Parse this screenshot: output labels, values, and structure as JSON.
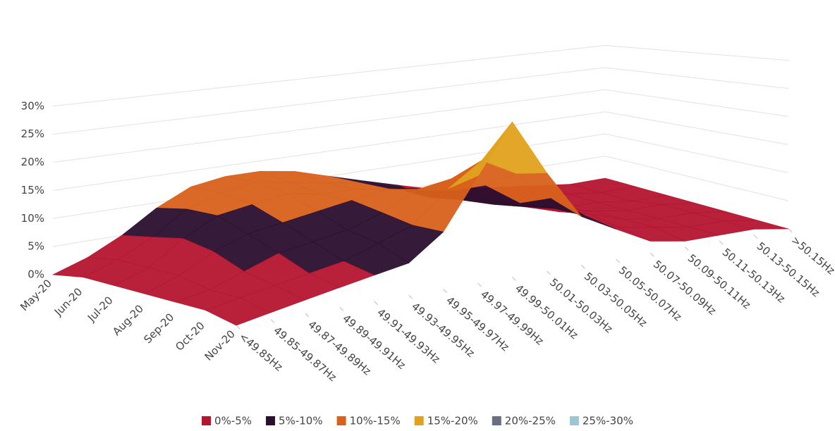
{
  "chart_data": {
    "type": "surface",
    "categories": [
      "<49.85Hz",
      "49.85-49.87Hz",
      "49.87-49.89Hz",
      "49.89-49.91Hz",
      "49.91-49.93Hz",
      "49.93-49.95Hz",
      "49.95-49.97Hz",
      "49.97-49.99Hz",
      "49.99-50.01Hz",
      "50.01-50.03Hz",
      "50.03-50.05Hz",
      "50.05-50.07Hz",
      "50.07-50.09Hz",
      "50.09-50.11Hz",
      "50.11-50.13Hz",
      "50.13-50.15Hz",
      ">50.15Hz"
    ],
    "series": [
      {
        "name": "May-20",
        "values": [
          0,
          2,
          5,
          9,
          12,
          13,
          13,
          12,
          10,
          8,
          6,
          4,
          3,
          2,
          1,
          0,
          0
        ]
      },
      {
        "name": "Jun-20",
        "values": [
          1,
          3,
          6,
          10,
          12,
          13,
          12,
          11,
          10,
          8,
          5,
          4,
          2,
          2,
          1,
          0,
          0
        ]
      },
      {
        "name": "Jul-20",
        "values": [
          1,
          3,
          7,
          10,
          11,
          12,
          11,
          11,
          10,
          9,
          6,
          4,
          3,
          1,
          1,
          0,
          0
        ]
      },
      {
        "name": "Aug-20",
        "values": [
          1,
          3,
          6,
          8,
          9,
          10,
          11,
          12,
          11,
          10,
          7,
          5,
          3,
          2,
          1,
          1,
          0
        ]
      },
      {
        "name": "Sep-20",
        "values": [
          1,
          2,
          4,
          6,
          7,
          8,
          10,
          13,
          14,
          12,
          8,
          6,
          4,
          2,
          1,
          1,
          0
        ]
      },
      {
        "name": "Oct-20",
        "values": [
          1,
          2,
          3,
          4,
          5,
          7,
          9,
          14,
          18,
          15,
          10,
          6,
          3,
          2,
          1,
          1,
          0
        ]
      },
      {
        "name": "Nov-20",
        "values": [
          0,
          1,
          2,
          3,
          4,
          5,
          9,
          17,
          25,
          16,
          8,
          5,
          2,
          1,
          1,
          1,
          0
        ]
      }
    ],
    "bands": [
      {
        "name": "0%-5%",
        "color": "#b5142f",
        "from": 0,
        "to": 5
      },
      {
        "name": "5%-10%",
        "color": "#2a0f2e",
        "from": 5,
        "to": 10
      },
      {
        "name": "10%-15%",
        "color": "#d8611c",
        "from": 10,
        "to": 15
      },
      {
        "name": "15%-20%",
        "color": "#e0a21e",
        "from": 15,
        "to": 20
      },
      {
        "name": "20%-25%",
        "color": "#6b6e80",
        "from": 20,
        "to": 25
      },
      {
        "name": "25%-30%",
        "color": "#9ec6d0",
        "from": 25,
        "to": 30
      }
    ],
    "ylim": [
      0,
      30
    ],
    "yticks": [
      {
        "value": 0,
        "label": "0%"
      },
      {
        "value": 5,
        "label": "5%"
      },
      {
        "value": 10,
        "label": "10%"
      },
      {
        "value": 15,
        "label": "15%"
      },
      {
        "value": 20,
        "label": "20%"
      },
      {
        "value": 25,
        "label": "25%"
      },
      {
        "value": 30,
        "label": "30%"
      }
    ],
    "grid": true,
    "legend": "bottom"
  }
}
